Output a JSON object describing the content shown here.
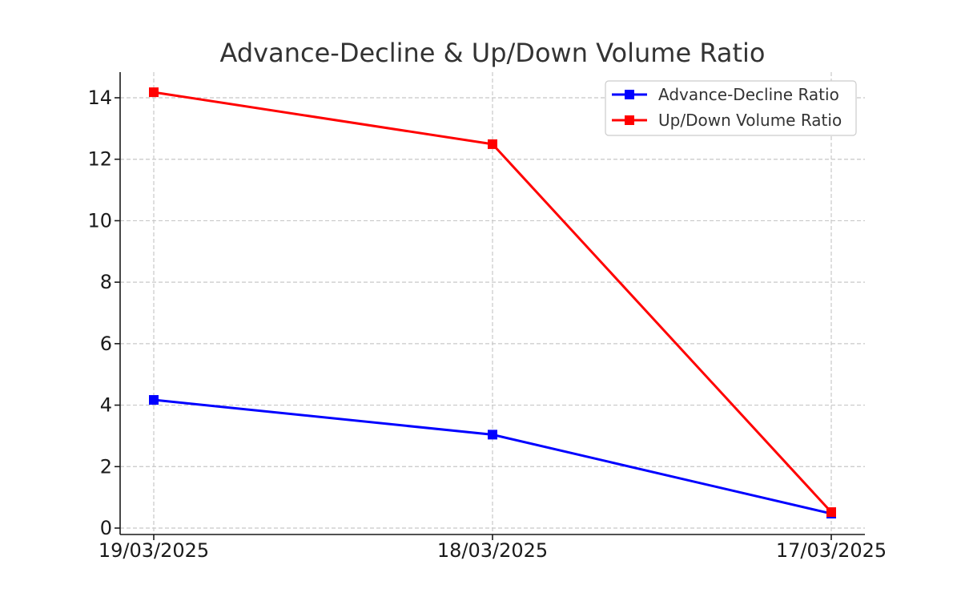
{
  "chart_data": {
    "type": "line",
    "title": "Advance-Decline & Up/Down Volume Ratio",
    "xlabel": "",
    "ylabel": "",
    "categories": [
      "19/03/2025",
      "18/03/2025",
      "17/03/2025"
    ],
    "yticks": [
      0,
      2,
      4,
      6,
      8,
      10,
      12,
      14
    ],
    "ylim": [
      -0.2,
      14.9
    ],
    "grid": true,
    "legend_position": "top-right",
    "series": [
      {
        "name": "Advance-Decline Ratio",
        "color": "#0000ff",
        "marker": "square",
        "values": [
          4.17,
          3.04,
          0.47
        ]
      },
      {
        "name": "Up/Down Volume Ratio",
        "color": "#ff0000",
        "marker": "square",
        "values": [
          14.18,
          12.49,
          0.52
        ]
      }
    ]
  }
}
